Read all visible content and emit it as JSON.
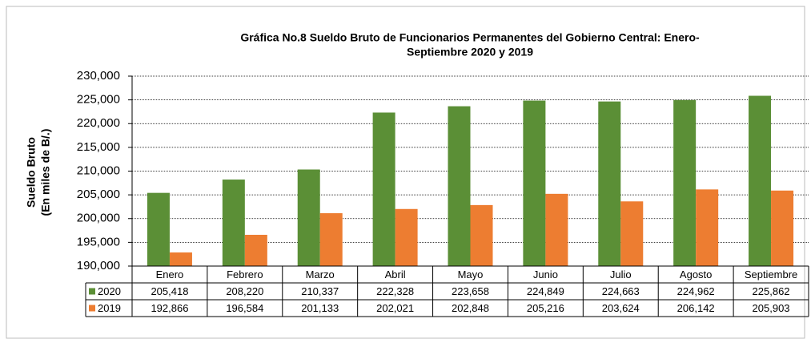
{
  "chart_data": {
    "type": "bar",
    "title": [
      "Gráfica No.8 Sueldo Bruto de Funcionarios Permanentes del Gobierno Central: Enero-",
      "Septiembre 2020 y 2019"
    ],
    "ylabel": [
      "Sueldo Bruto",
      "(En miles de B/.)"
    ],
    "categories": [
      "Enero",
      "Febrero",
      "Marzo",
      "Abril",
      "Mayo",
      "Junio",
      "Julio",
      "Agosto",
      "Septiembre"
    ],
    "series": [
      {
        "name": "2020",
        "color": "#5b8f36",
        "values": [
          205418,
          208220,
          210337,
          222328,
          223658,
          224849,
          224663,
          224962,
          225862
        ],
        "value_labels": [
          "205,418",
          "208,220",
          "210,337",
          "222,328",
          "223,658",
          "224,849",
          "224,663",
          "224,962",
          "225,862"
        ]
      },
      {
        "name": "2019",
        "color": "#ed7d31",
        "values": [
          192866,
          196584,
          201133,
          202021,
          202848,
          205216,
          203624,
          206142,
          205903
        ],
        "value_labels": [
          "192,866",
          "196,584",
          "201,133",
          "202,021",
          "202,848",
          "205,216",
          "203,624",
          "206,142",
          "205,903"
        ]
      }
    ],
    "ylim": [
      190000,
      230000
    ],
    "yticks": [
      {
        "value": 190000,
        "label": "190,000"
      },
      {
        "value": 195000,
        "label": "195,000"
      },
      {
        "value": 200000,
        "label": "200,000"
      },
      {
        "value": 205000,
        "label": "205,000"
      },
      {
        "value": 210000,
        "label": "210,000"
      },
      {
        "value": 215000,
        "label": "215,000"
      },
      {
        "value": 220000,
        "label": "220,000"
      },
      {
        "value": 225000,
        "label": "225,000"
      },
      {
        "value": 230000,
        "label": "230,000"
      }
    ],
    "grid": true
  }
}
